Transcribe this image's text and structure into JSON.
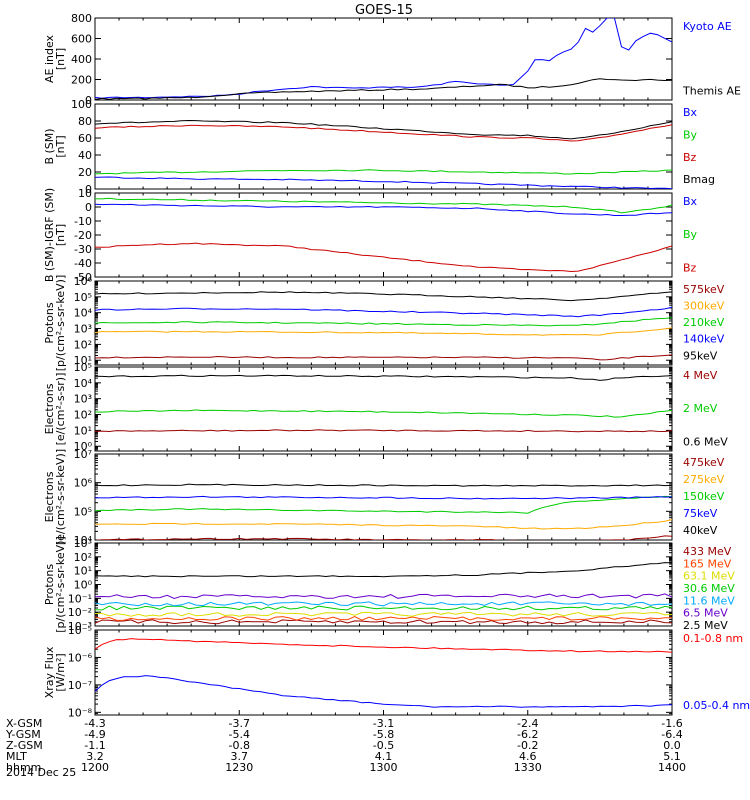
{
  "title": "GOES-15",
  "date_label": "2014 Dec 25",
  "chart_data": [
    {
      "type": "line",
      "panel": "ae",
      "ylabel": [
        "AE index",
        "[nT]"
      ],
      "ylim": [
        0,
        800
      ],
      "yscale": "linear",
      "yticks": [
        "0",
        "200",
        "400",
        "600",
        "800"
      ],
      "ytick_values": [
        0,
        200,
        400,
        600,
        800
      ],
      "series": [
        {
          "name": "Kyoto AE",
          "color": "#0000ff",
          "x": [
            1200,
            1205,
            1210,
            1215,
            1220,
            1225,
            1230,
            1235,
            1240,
            1245,
            1250,
            1255,
            1300,
            1305,
            1310,
            1315,
            1320,
            1325,
            1327,
            1330,
            1332,
            1334,
            1336,
            1338,
            1340,
            1342,
            1344,
            1346,
            1348,
            1350,
            1352,
            1354,
            1356,
            1358,
            1400
          ],
          "y": [
            20,
            25,
            25,
            30,
            35,
            40,
            60,
            90,
            110,
            130,
            120,
            115,
            130,
            120,
            140,
            180,
            160,
            140,
            150,
            280,
            430,
            360,
            440,
            480,
            520,
            700,
            650,
            800,
            810,
            420,
            560,
            620,
            660,
            610,
            570
          ]
        },
        {
          "name": "Themis AE",
          "color": "#000000",
          "x": [
            1200,
            1210,
            1220,
            1230,
            1240,
            1250,
            1300,
            1310,
            1320,
            1325,
            1330,
            1335,
            1340,
            1345,
            1350,
            1355,
            1400
          ],
          "y": [
            10,
            15,
            25,
            60,
            80,
            90,
            100,
            110,
            140,
            150,
            120,
            130,
            160,
            210,
            190,
            200,
            190
          ]
        }
      ]
    },
    {
      "type": "line",
      "panel": "b_sm",
      "ylabel": [
        "B (SM)",
        "[nT]"
      ],
      "ylim": [
        0,
        100
      ],
      "yscale": "linear",
      "yticks": [
        "0",
        "20",
        "40",
        "60",
        "80",
        "100"
      ],
      "ytick_values": [
        0,
        20,
        40,
        60,
        80,
        100
      ],
      "series": [
        {
          "name": "Bx",
          "color": "#0000ff",
          "x": [
            1200,
            1220,
            1240,
            1300,
            1320,
            1340,
            1400
          ],
          "y": [
            14,
            12,
            11,
            9,
            6,
            3,
            0
          ]
        },
        {
          "name": "By",
          "color": "#00cc00",
          "x": [
            1200,
            1220,
            1240,
            1300,
            1320,
            1330,
            1340,
            1400
          ],
          "y": [
            18,
            20,
            22,
            22,
            20,
            19,
            18,
            22
          ]
        },
        {
          "name": "Bz",
          "color": "#cc0000",
          "x": [
            1200,
            1220,
            1240,
            1300,
            1320,
            1330,
            1340,
            1345,
            1400
          ],
          "y": [
            72,
            75,
            73,
            67,
            61,
            60,
            56,
            60,
            76
          ]
        },
        {
          "name": "Bmag",
          "color": "#000000",
          "x": [
            1200,
            1220,
            1240,
            1300,
            1320,
            1330,
            1340,
            1345,
            1400
          ],
          "y": [
            77,
            80,
            78,
            71,
            64,
            63,
            59,
            63,
            79
          ]
        }
      ]
    },
    {
      "type": "line",
      "panel": "b_sm_igrf",
      "ylabel": [
        "B (SM)-IGRF (SM)",
        "[nT]"
      ],
      "ylim": [
        -50,
        10
      ],
      "yscale": "linear",
      "yticks": [
        "10",
        "0",
        "-10",
        "-20",
        "-30",
        "-40",
        "-50"
      ],
      "ytick_values": [
        10,
        0,
        -10,
        -20,
        -30,
        -40,
        -50
      ],
      "series": [
        {
          "name": "Bx",
          "color": "#0000ff",
          "x": [
            1200,
            1220,
            1240,
            1300,
            1320,
            1330,
            1340,
            1350,
            1400
          ],
          "y": [
            2,
            1,
            0,
            0,
            -1,
            -3,
            -5,
            -6,
            -4
          ]
        },
        {
          "name": "By",
          "color": "#00cc00",
          "x": [
            1200,
            1220,
            1240,
            1300,
            1320,
            1330,
            1340,
            1350,
            1400
          ],
          "y": [
            6,
            5,
            4,
            3,
            2,
            1,
            0,
            -4,
            1
          ]
        },
        {
          "name": "Bz",
          "color": "#cc0000",
          "x": [
            1200,
            1210,
            1220,
            1240,
            1300,
            1320,
            1330,
            1340,
            1345,
            1400
          ],
          "y": [
            -29,
            -27,
            -26,
            -28,
            -36,
            -43,
            -45,
            -46,
            -42,
            -28
          ]
        }
      ]
    },
    {
      "type": "line",
      "panel": "protons_low",
      "ylabel": [
        "Protons",
        "[p/(cm²-s-sr-keV)]"
      ],
      "ylim": [
        5,
        1000000
      ],
      "yscale": "log",
      "yticks": [
        "10¹",
        "10²",
        "10³",
        "10⁴",
        "10⁵",
        "10⁶"
      ],
      "ytick_values": [
        10,
        100,
        1000,
        10000,
        100000,
        1000000
      ],
      "series": [
        {
          "name": "575keV",
          "color": "#990000",
          "x": [
            1200,
            1220,
            1240,
            1300,
            1320,
            1340,
            1345,
            1350,
            1400
          ],
          "y": [
            15,
            16,
            15,
            15,
            15,
            14,
            10,
            14,
            22
          ]
        },
        {
          "name": "300keV",
          "color": "#ffaa00",
          "x": [
            1200,
            1220,
            1240,
            1300,
            1320,
            1340,
            1345,
            1400
          ],
          "y": [
            600,
            650,
            600,
            550,
            450,
            380,
            400,
            1100
          ]
        },
        {
          "name": "210keV",
          "color": "#00cc00",
          "x": [
            1200,
            1220,
            1240,
            1300,
            1320,
            1340,
            1345,
            1400
          ],
          "y": [
            2200,
            2500,
            2300,
            2000,
            1700,
            1500,
            2000,
            5000
          ]
        },
        {
          "name": "140keV",
          "color": "#0000ff",
          "x": [
            1200,
            1220,
            1240,
            1300,
            1320,
            1340,
            1345,
            1400
          ],
          "y": [
            15000,
            18000,
            17000,
            12000,
            9000,
            6000,
            7000,
            20000
          ]
        },
        {
          "name": "95keV",
          "color": "#000000",
          "x": [
            1200,
            1220,
            1240,
            1300,
            1320,
            1340,
            1345,
            1400
          ],
          "y": [
            150000,
            180000,
            200000,
            150000,
            100000,
            60000,
            80000,
            200000
          ]
        }
      ]
    },
    {
      "type": "line",
      "panel": "electrons_mev",
      "ylabel": [
        "Electrons",
        "[e/(cm²-s-sr)]"
      ],
      "ylim": [
        0.5,
        100000
      ],
      "yscale": "log",
      "yticks": [
        "10⁰",
        "10¹",
        "10²",
        "10³",
        "10⁴",
        "10⁵"
      ],
      "ytick_values": [
        1,
        10,
        100,
        1000,
        10000,
        100000
      ],
      "series": [
        {
          "name": "4 MeV",
          "color": "#990000",
          "x": [
            1200,
            1240,
            1300,
            1340,
            1400
          ],
          "y": [
            9,
            10,
            10,
            9,
            9
          ]
        },
        {
          "name": "2 MeV",
          "color": "#00cc00",
          "x": [
            1200,
            1220,
            1240,
            1300,
            1320,
            1340,
            1350,
            1400
          ],
          "y": [
            150,
            180,
            170,
            150,
            120,
            90,
            70,
            180
          ]
        },
        {
          "name": "0.6 MeV",
          "color": "#000000",
          "x": [
            1200,
            1220,
            1240,
            1300,
            1320,
            1340,
            1345,
            1350,
            1400
          ],
          "y": [
            25000,
            28000,
            28000,
            26000,
            24000,
            20000,
            15000,
            22000,
            30000
          ]
        }
      ]
    },
    {
      "type": "line",
      "panel": "electrons_kev",
      "ylabel": [
        "Electrons",
        "[e/(cm²-s-sr-keV)]"
      ],
      "ylim": [
        10000,
        10000000
      ],
      "yscale": "log",
      "yticks": [
        "10⁴",
        "10⁵",
        "10⁶",
        "10⁷"
      ],
      "ytick_values": [
        10000,
        100000,
        1000000,
        10000000
      ],
      "series": [
        {
          "name": "475keV",
          "color": "#990000",
          "x": [
            1200,
            1220,
            1240,
            1300,
            1320,
            1340,
            1350,
            1400
          ],
          "y": [
            10000,
            11000,
            11000,
            10000,
            10000,
            9000,
            10000,
            14000
          ]
        },
        {
          "name": "275keV",
          "color": "#ffaa00",
          "x": [
            1200,
            1220,
            1240,
            1300,
            1320,
            1330,
            1340,
            1350,
            1400
          ],
          "y": [
            35000,
            37000,
            36000,
            33000,
            30000,
            25000,
            25000,
            32000,
            50000
          ]
        },
        {
          "name": "150keV",
          "color": "#00cc00",
          "x": [
            1200,
            1220,
            1240,
            1300,
            1320,
            1330,
            1335,
            1340,
            1350,
            1400
          ],
          "y": [
            110000,
            120000,
            110000,
            100000,
            95000,
            90000,
            170000,
            220000,
            280000,
            330000
          ]
        },
        {
          "name": "75keV",
          "color": "#0000ff",
          "x": [
            1200,
            1220,
            1240,
            1300,
            1320,
            1340,
            1350,
            1400
          ],
          "y": [
            300000,
            320000,
            310000,
            300000,
            280000,
            290000,
            300000,
            320000
          ]
        },
        {
          "name": "40keV",
          "color": "#000000",
          "x": [
            1200,
            1220,
            1240,
            1300,
            1320,
            1340,
            1350,
            1400
          ],
          "y": [
            800000,
            850000,
            830000,
            800000,
            780000,
            790000,
            800000,
            820000
          ]
        }
      ]
    },
    {
      "type": "line",
      "panel": "protons_high",
      "ylabel": [
        "Protons",
        "[p/(cm²-s-sr-keV)]"
      ],
      "ylim": [
        0.001,
        1000
      ],
      "yscale": "log",
      "yticks": [
        "10⁻³",
        "10⁻²",
        "10⁻¹",
        "10⁰",
        "10¹",
        "10²",
        "10³"
      ],
      "ytick_values": [
        0.001,
        0.01,
        0.1,
        1,
        10,
        100,
        1000
      ],
      "series": [
        {
          "name": "433 MeV",
          "color": "#990000",
          "x": [
            1200,
            1400
          ],
          "y": [
            0.002,
            0.002
          ]
        },
        {
          "name": "165 MeV",
          "color": "#ff4400",
          "x": [
            1200,
            1400
          ],
          "y": [
            0.0035,
            0.0035
          ]
        },
        {
          "name": "63.1 MeV",
          "color": "#dddd00",
          "x": [
            1200,
            1400
          ],
          "y": [
            0.007,
            0.007
          ]
        },
        {
          "name": "30.6 MeV",
          "color": "#00cc00",
          "x": [
            1200,
            1400
          ],
          "y": [
            0.02,
            0.02
          ]
        },
        {
          "name": "11.6 MeV",
          "color": "#00aaff",
          "x": [
            1200,
            1400
          ],
          "y": [
            0.04,
            0.04
          ]
        },
        {
          "name": "6.5 MeV",
          "color": "#6600cc",
          "x": [
            1200,
            1400
          ],
          "y": [
            0.13,
            0.15
          ]
        },
        {
          "name": "2.5 MeV",
          "color": "#000000",
          "x": [
            1200,
            1300,
            1320,
            1340,
            1400
          ],
          "y": [
            4,
            4,
            5,
            10,
            40
          ]
        }
      ]
    },
    {
      "type": "line",
      "panel": "xray",
      "ylabel": [
        "Xray Flux",
        "[W/m²]"
      ],
      "ylim": [
        8e-09,
        1e-05
      ],
      "yscale": "log",
      "yticks": [
        "10⁻⁸",
        "10⁻⁷",
        "10⁻⁶",
        "10⁻⁵"
      ],
      "ytick_values": [
        1e-08,
        1e-07,
        1e-06,
        1e-05
      ],
      "series": [
        {
          "name": "0.1-0.8 nm",
          "color": "#ff0000",
          "x": [
            1200,
            1202,
            1205,
            1210,
            1215,
            1220,
            1230,
            1240,
            1300,
            1320,
            1340,
            1400
          ],
          "y": [
            2e-06,
            3.5e-06,
            4.5e-06,
            4.8e-06,
            4.5e-06,
            4e-06,
            3.4e-06,
            3e-06,
            2.4e-06,
            2e-06,
            1.7e-06,
            1.6e-06
          ]
        },
        {
          "name": "0.05-0.4 nm",
          "color": "#0000ff",
          "x": [
            1200,
            1202,
            1205,
            1210,
            1215,
            1220,
            1230,
            1240,
            1250,
            1300,
            1310,
            1320,
            1340,
            1400
          ],
          "y": [
            6e-08,
            1.2e-07,
            1.9e-07,
            2.1e-07,
            1.8e-07,
            1.3e-07,
            7e-08,
            4e-08,
            2.8e-08,
            2e-08,
            1.6e-08,
            1.6e-08,
            1.6e-08,
            1.8e-08
          ]
        }
      ]
    }
  ],
  "axis_rows": [
    {
      "label": "X-GSM",
      "values": [
        "-4.3",
        "-3.7",
        "-3.1",
        "-2.4",
        "-1.6"
      ]
    },
    {
      "label": "Y-GSM",
      "values": [
        "-4.9",
        "-5.4",
        "-5.8",
        "-6.2",
        "-6.4"
      ]
    },
    {
      "label": "Z-GSM",
      "values": [
        "-1.1",
        "-0.8",
        "-0.5",
        "-0.2",
        "0.0"
      ]
    },
    {
      "label": "MLT",
      "values": [
        "3.2",
        "3.7",
        "4.1",
        "4.6",
        "5.1"
      ]
    },
    {
      "label": "hhmm",
      "values": [
        "1200",
        "1230",
        "1300",
        "1330",
        "1400"
      ]
    }
  ],
  "time_range": [
    1200,
    1400
  ]
}
